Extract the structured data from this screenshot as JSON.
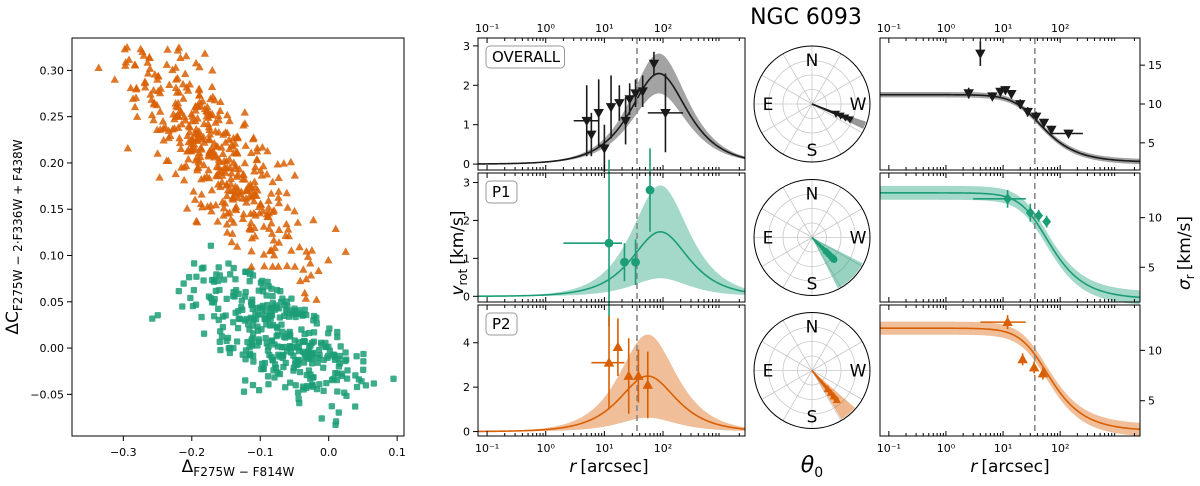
{
  "title": "NGC 6093",
  "colors": {
    "p1": "#1b9e77",
    "p2": "#d95f02",
    "overall": "#1a1a1a",
    "grey": "#888888"
  },
  "scatter": {
    "type": "scatter",
    "xlabel": "ΔF275W − F814W",
    "ylabel": "ΔC F275W − 2·F336W + F438W",
    "xlabel_main": "Δ",
    "xlabel_sub": "F275W − F814W",
    "ylabel_main": "ΔC",
    "ylabel_sub": "F275W − 2·F336W + F438W",
    "xlim": [
      -0.375,
      0.11
    ],
    "ylim": [
      -0.095,
      0.335
    ],
    "xticks": [
      -0.3,
      -0.2,
      -0.1,
      0.0,
      0.1
    ],
    "xtick_labels": [
      "−0.3",
      "−0.2",
      "−0.1",
      "0.0",
      "0.1"
    ],
    "yticks": [
      -0.05,
      0.0,
      0.05,
      0.1,
      0.15,
      0.2,
      0.25,
      0.3
    ],
    "ytick_labels": [
      "−0.05",
      "0.00",
      "0.05",
      "0.10",
      "0.15",
      "0.20",
      "0.25",
      "0.30"
    ],
    "series": [
      {
        "name": "P2",
        "marker": "triangle",
        "count": 430,
        "x_center": -0.16,
        "y_center": 0.205,
        "xy_slope": -0.75,
        "separator": "y > 0.025 - 0.55*x"
      },
      {
        "name": "P1",
        "marker": "square",
        "count": 360,
        "x_center": -0.065,
        "y_center": 0.015,
        "xy_slope": -0.35,
        "separator": "y < 0.025 - 0.55*x"
      }
    ]
  },
  "rotation_panels": {
    "type": "scatter",
    "xscale": "log",
    "xlim": [
      0.07,
      2500
    ],
    "xlabel": "r [arcsec]",
    "xlabel_main": "r",
    "xlabel_unit": "[arcsec]",
    "ylabel": "v rot [km/s]",
    "ylabel_main": "v",
    "ylabel_sub": "rot",
    "ylabel_unit": "[km/s]",
    "x_tick_labels": [
      "10⁻¹",
      "10⁰",
      "10¹",
      "10²"
    ],
    "half_light_radius": 36,
    "panels": [
      {
        "label": "OVERALL",
        "color_key": "overall",
        "marker": "inverted-triangle",
        "ylim": [
          -0.15,
          3.2
        ],
        "yticks": [
          0,
          1,
          2,
          3
        ],
        "ytick_labels": [
          "0",
          "1",
          "2",
          "3"
        ],
        "model": {
          "peak_r": 85,
          "peak_v": 2.3,
          "band_frac": 0.22
        },
        "points": [
          {
            "r": 5,
            "v": 1.1,
            "err": 0.9,
            "xerr_low": 3,
            "xerr_high": 8
          },
          {
            "r": 6,
            "v": 0.75,
            "err": 0.55
          },
          {
            "r": 8,
            "v": 1.3,
            "err": 0.85
          },
          {
            "r": 10,
            "v": 0.4,
            "err": 0.6
          },
          {
            "r": 13,
            "v": 1.45,
            "err": 0.8
          },
          {
            "r": 18,
            "v": 1.55,
            "err": 0.45
          },
          {
            "r": 23,
            "v": 1.1,
            "err": 0.6
          },
          {
            "r": 27,
            "v": 1.65,
            "err": 0.4
          },
          {
            "r": 34,
            "v": 1.8,
            "err": 0.35
          },
          {
            "r": 45,
            "v": 1.85,
            "err": 0.4
          },
          {
            "r": 70,
            "v": 2.55,
            "err": 0.3
          },
          {
            "r": 110,
            "v": 1.3,
            "err": 1.0,
            "xerr_low": 55,
            "xerr_high": 220
          }
        ]
      },
      {
        "label": "P1",
        "color_key": "p1",
        "marker": "circle",
        "ylim": [
          -0.15,
          3.25
        ],
        "yticks": [
          0,
          1,
          2,
          3
        ],
        "ytick_labels": [
          "0",
          "1",
          "2",
          "3"
        ],
        "model": {
          "peak_r": 90,
          "peak_v": 1.7,
          "band_frac": 0.72
        },
        "points": [
          {
            "r": 12,
            "v": 1.4,
            "err": 2.2,
            "xerr_low": 2,
            "xerr_high": 20
          },
          {
            "r": 22,
            "v": 0.9,
            "err": 0.5
          },
          {
            "r": 34,
            "v": 0.9,
            "err": 0.6
          },
          {
            "r": 60,
            "v": 2.8,
            "err": 1.1
          }
        ]
      },
      {
        "label": "P2",
        "color_key": "p2",
        "marker": "triangle",
        "ylim": [
          -0.2,
          5.7
        ],
        "yticks": [
          0,
          2,
          4
        ],
        "ytick_labels": [
          "0",
          "2",
          "4"
        ],
        "model": {
          "peak_r": 55,
          "peak_v": 2.5,
          "band_frac": 0.75
        },
        "points": [
          {
            "r": 12,
            "v": 3.1,
            "err": 2.1,
            "xerr_low": 6,
            "xerr_high": 22
          },
          {
            "r": 17,
            "v": 3.8,
            "err": 1.3
          },
          {
            "r": 26,
            "v": 2.5,
            "err": 1.7
          },
          {
            "r": 38,
            "v": 2.5,
            "err": 1.2
          },
          {
            "r": 55,
            "v": 2.1,
            "err": 1.5
          }
        ]
      }
    ]
  },
  "polar_panels": {
    "type": "polar",
    "xlabel": "θ 0",
    "xlabel_main": "θ",
    "xlabel_sub": "0",
    "directions": [
      "N",
      "E",
      "S",
      "W"
    ],
    "panels": [
      {
        "label": "OVERALL",
        "color_key": "overall",
        "pa_center_deg": -22,
        "pa_spread_deg": 4,
        "amplitude": 0.72
      },
      {
        "label": "P1",
        "color_key": "p1",
        "pa_center_deg": -45,
        "pa_spread_deg": 18,
        "amplitude": 0.55
      },
      {
        "label": "P2",
        "color_key": "p2",
        "pa_center_deg": -50,
        "pa_spread_deg": 9,
        "amplitude": 0.68
      }
    ]
  },
  "dispersion_panels": {
    "type": "scatter",
    "xscale": "log",
    "xlim": [
      0.07,
      2500
    ],
    "xlabel": "r [arcsec]",
    "xlabel_main": "r",
    "xlabel_unit": "[arcsec]",
    "ylabel": "σ r [km/s]",
    "ylabel_main": "σ",
    "ylabel_sub": "r",
    "ylabel_unit": "[km/s]",
    "x_tick_labels": [
      "10⁻¹",
      "10⁰",
      "10¹",
      "10²"
    ],
    "half_light_radius": 36,
    "panels": [
      {
        "label": "OVERALL",
        "color_key": "overall",
        "marker": "inverted-triangle",
        "ylim": [
          1.5,
          18.5
        ],
        "yticks": [
          5,
          10,
          15
        ],
        "ytick_labels": [
          "5",
          "10",
          "15"
        ],
        "model": {
          "s0": 11.2,
          "s_inf": 2.5,
          "r0": 30,
          "band": 0.35
        },
        "points": [
          {
            "r": 2.5,
            "s": 11.4,
            "err": 0.7
          },
          {
            "r": 4,
            "s": 16.5,
            "err": 1.6
          },
          {
            "r": 6.5,
            "s": 11.0,
            "err": 0.5
          },
          {
            "r": 9,
            "s": 11.6,
            "err": 0.5
          },
          {
            "r": 11,
            "s": 11.8,
            "err": 0.5
          },
          {
            "r": 14,
            "s": 11.3,
            "err": 0.5
          },
          {
            "r": 20,
            "s": 10.0,
            "err": 0.6
          },
          {
            "r": 27,
            "s": 9.0,
            "err": 0.6
          },
          {
            "r": 38,
            "s": 8.4,
            "err": 0.6
          },
          {
            "r": 52,
            "s": 7.6,
            "err": 0.5
          },
          {
            "r": 70,
            "s": 6.7,
            "err": 0.5
          },
          {
            "r": 140,
            "s": 6.2,
            "err": 0.4,
            "xerr_low": 70,
            "xerr_high": 250
          }
        ]
      },
      {
        "label": "P1",
        "color_key": "p1",
        "marker": "diamond",
        "ylim": [
          1.5,
          14.5
        ],
        "yticks": [
          5,
          10
        ],
        "ytick_labels": [
          "5",
          "10"
        ],
        "model": {
          "s0": 12.5,
          "s_inf": 1.8,
          "r0": 40,
          "band": 0.7
        },
        "points": [
          {
            "r": 12,
            "s": 11.9,
            "err": 0.9,
            "xerr_low": 3,
            "xerr_high": 25
          },
          {
            "r": 30,
            "s": 10.5,
            "err": 0.9
          },
          {
            "r": 42,
            "s": 10.2,
            "err": 0.6
          },
          {
            "r": 58,
            "s": 9.6,
            "err": 0.6
          }
        ]
      },
      {
        "label": "P2",
        "color_key": "p2",
        "marker": "triangle",
        "ylim": [
          1.5,
          14.5
        ],
        "yticks": [
          5,
          10
        ],
        "ytick_labels": [
          "5",
          "10"
        ],
        "model": {
          "s0": 12.2,
          "s_inf": 2.0,
          "r0": 40,
          "band": 0.65
        },
        "points": [
          {
            "r": 12,
            "s": 12.8,
            "err": 0.7,
            "xerr_low": 4,
            "xerr_high": 25
          },
          {
            "r": 22,
            "s": 9.1,
            "err": 0.6
          },
          {
            "r": 35,
            "s": 8.3,
            "err": 0.6
          },
          {
            "r": 50,
            "s": 7.7,
            "err": 0.6
          }
        ]
      }
    ]
  }
}
